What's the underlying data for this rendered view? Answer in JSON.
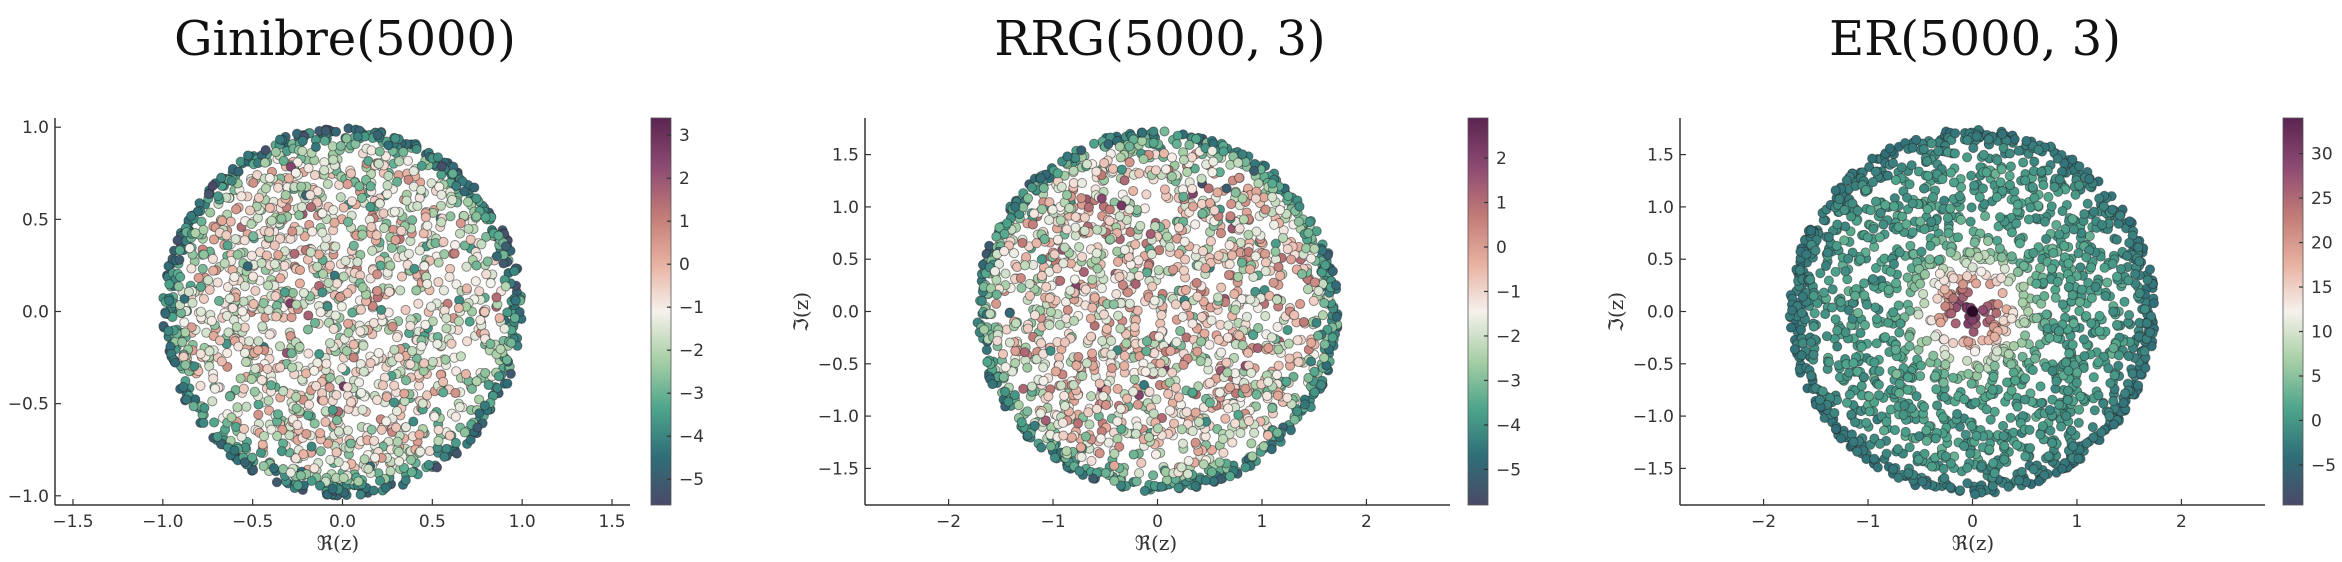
{
  "chart_data": [
    {
      "type": "scatter",
      "title": "Ginibre(5000)",
      "xlabel": "ℜ(z)",
      "ylabel": "",
      "xlim": [
        -1.6,
        1.6
      ],
      "ylim": [
        -1.05,
        1.05
      ],
      "xticks": [
        -1.5,
        -1.0,
        -0.5,
        0.0,
        0.5,
        1.0,
        1.5
      ],
      "xtick_labels": [
        "−1.5",
        "−1.0",
        "−0.5",
        "0.0",
        "0.5",
        "1.0",
        "1.5"
      ],
      "yticks": [
        -1.0,
        -0.5,
        0.0,
        0.5,
        1.0
      ],
      "ytick_labels": [
        "−1.0",
        "−0.5",
        "0.0",
        "0.5",
        "1.0"
      ],
      "support": {
        "shape": "disk",
        "center": [
          0,
          0
        ],
        "radius": 1.0,
        "n_points": 5000
      },
      "colorbar": {
        "range": [
          -5.6,
          3.4
        ],
        "ticks": [
          -5,
          -4,
          -3,
          -2,
          -1,
          0,
          1,
          2,
          3
        ],
        "tick_labels": [
          "−5",
          "−4",
          "−3",
          "−2",
          "−1",
          "0",
          "1",
          "2",
          "3"
        ]
      },
      "color_profile": {
        "center": -1.2,
        "edge": -4.8,
        "edge_start": 0.85,
        "noise": 1.1,
        "hotspot": null
      },
      "grid": false,
      "legend": "none"
    },
    {
      "type": "scatter",
      "title": "RRG(5000, 3)",
      "xlabel": "ℜ(z)",
      "ylabel": "ℑ(z)",
      "xlim": [
        -2.8,
        2.8
      ],
      "ylim": [
        -1.85,
        1.85
      ],
      "xticks": [
        -2,
        -1,
        0,
        1,
        2
      ],
      "xtick_labels": [
        "−2",
        "−1",
        "0",
        "1",
        "2"
      ],
      "yticks": [
        -1.5,
        -1.0,
        -0.5,
        0.0,
        0.5,
        1.0,
        1.5
      ],
      "ytick_labels": [
        "−1.5",
        "−1.0",
        "−0.5",
        "0.0",
        "0.5",
        "1.0",
        "1.5"
      ],
      "support": {
        "shape": "disk",
        "center": [
          0,
          0
        ],
        "radius": 1.73,
        "n_points": 5000
      },
      "colorbar": {
        "range": [
          -5.8,
          2.9
        ],
        "ticks": [
          -5,
          -4,
          -3,
          -2,
          -1,
          0,
          1,
          2
        ],
        "tick_labels": [
          "−5",
          "−4",
          "−3",
          "−2",
          "−1",
          "0",
          "1",
          "2"
        ]
      },
      "color_profile": {
        "center": -1.3,
        "edge": -4.6,
        "edge_start": 0.86,
        "noise": 1.2,
        "hotspot": null
      },
      "grid": false,
      "legend": "none"
    },
    {
      "type": "scatter",
      "title": "ER(5000, 3)",
      "xlabel": "ℜ(z)",
      "ylabel": "ℑ(z)",
      "xlim": [
        -2.8,
        2.8
      ],
      "ylim": [
        -1.85,
        1.85
      ],
      "xticks": [
        -2,
        -1,
        0,
        1,
        2
      ],
      "xtick_labels": [
        "−2",
        "−1",
        "0",
        "1",
        "2"
      ],
      "yticks": [
        -1.5,
        -1.0,
        -0.5,
        0.0,
        0.5,
        1.0,
        1.5
      ],
      "ytick_labels": [
        "−1.5",
        "−1.0",
        "−0.5",
        "0.0",
        "0.5",
        "1.0",
        "1.5"
      ],
      "support": {
        "shape": "disk",
        "center": [
          0,
          0
        ],
        "radius": 1.75,
        "n_points": 5000
      },
      "colorbar": {
        "range": [
          -9.5,
          34
        ],
        "ticks": [
          -5,
          0,
          5,
          10,
          15,
          20,
          25,
          30
        ],
        "tick_labels": [
          "−5",
          "0",
          "5",
          "10",
          "15",
          "20",
          "25",
          "30"
        ]
      },
      "color_profile": {
        "center": 0.5,
        "edge": -3.5,
        "edge_start": 0.8,
        "noise": 1.2,
        "hotspot": {
          "peak": 34,
          "width": 0.17
        }
      },
      "grid": false,
      "legend": "none"
    }
  ],
  "colormap": [
    "#4a4a68",
    "#2f6e78",
    "#4ea58c",
    "#a8cfa6",
    "#f6f1ec",
    "#e7b0a0",
    "#c07a76",
    "#8c4a72",
    "#5a2450"
  ]
}
